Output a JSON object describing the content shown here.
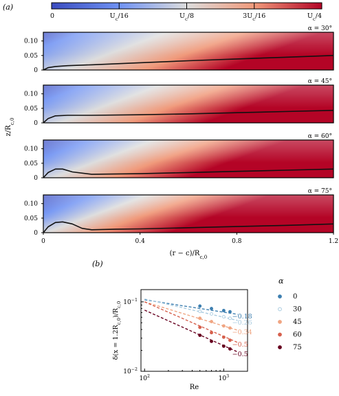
{
  "panel_labels": {
    "a": "(a)",
    "b": "(b)"
  },
  "colorbar": {
    "ticks": [
      "0",
      "U_c/16",
      "U_c/8",
      "3U_c/16",
      "U_c/4"
    ],
    "colors": [
      "#3b4cc0",
      "#6f92f3",
      "#dddddd",
      "#f09a7b",
      "#b40426"
    ]
  },
  "chart_data": [
    {
      "type": "heatmap",
      "title": "",
      "xlabel": "(r − c)/R_c,0",
      "ylabel": "z/R_c,0",
      "xlim": [
        0,
        1.2
      ],
      "ylim": [
        0,
        0.13
      ],
      "xticks": [
        "0",
        "0.4",
        "0.8",
        "1.2"
      ],
      "yticks": [
        "0",
        "0.05",
        "0.10"
      ],
      "colorscale": {
        "min": 0,
        "max": "U_c/4"
      },
      "panels": [
        {
          "label": "α = 30°",
          "alpha": 30,
          "boundary_layer": {
            "x": [
              0,
              0.02,
              0.05,
              0.1,
              0.2,
              0.4,
              0.6,
              0.8,
              1.0,
              1.2
            ],
            "y": [
              0,
              0.008,
              0.012,
              0.015,
              0.018,
              0.025,
              0.032,
              0.038,
              0.044,
              0.05
            ]
          }
        },
        {
          "label": "α = 45°",
          "alpha": 45,
          "boundary_layer": {
            "x": [
              0,
              0.02,
              0.05,
              0.1,
              0.2,
              0.4,
              0.6,
              0.8,
              1.0,
              1.2
            ],
            "y": [
              0,
              0.015,
              0.024,
              0.026,
              0.026,
              0.028,
              0.031,
              0.035,
              0.039,
              0.043
            ]
          }
        },
        {
          "label": "α = 60°",
          "alpha": 60,
          "boundary_layer": {
            "x": [
              0,
              0.02,
              0.05,
              0.08,
              0.12,
              0.2,
              0.4,
              0.6,
              0.8,
              1.0,
              1.2
            ],
            "y": [
              0,
              0.018,
              0.03,
              0.03,
              0.02,
              0.012,
              0.014,
              0.018,
              0.022,
              0.026,
              0.03
            ]
          }
        },
        {
          "label": "α = 75°",
          "alpha": 75,
          "boundary_layer": {
            "x": [
              0,
              0.02,
              0.05,
              0.08,
              0.12,
              0.16,
              0.2,
              0.3,
              0.4,
              0.6,
              0.8,
              1.0,
              1.2
            ],
            "y": [
              0,
              0.02,
              0.035,
              0.037,
              0.03,
              0.015,
              0.01,
              0.012,
              0.013,
              0.017,
              0.021,
              0.025,
              0.03
            ]
          }
        }
      ]
    },
    {
      "type": "scatter",
      "title": "",
      "xlabel": "Re",
      "ylabel": "δ(x = 1.2R_c,0)/R_c,0",
      "xscale": "log",
      "yscale": "log",
      "xlim": [
        90,
        2000
      ],
      "ylim": [
        0.01,
        0.15
      ],
      "xticks": [
        {
          "value": 100,
          "base": "10",
          "exp": "2"
        },
        {
          "value": 1000,
          "base": "10",
          "exp": "3"
        }
      ],
      "yticks": [
        {
          "value": 0.1,
          "base": "10",
          "exp": "−1"
        },
        {
          "value": 0.01,
          "base": "10",
          "exp": "−2"
        }
      ],
      "legend": {
        "title": "α",
        "position": "right-outside"
      },
      "series": [
        {
          "name": "0",
          "color": "#3d7fb0",
          "fill": "#3d7fb0",
          "slope_label": "−0.18",
          "x": [
            500,
            700,
            1000,
            1200
          ],
          "y": [
            0.087,
            0.08,
            0.075,
            0.072
          ],
          "fit": {
            "x": [
              100,
              1500
            ],
            "y": [
              0.107,
              0.066
            ]
          }
        },
        {
          "name": "30",
          "color": "#a9cbe0",
          "fill": "#ffffff",
          "slope_label": "−0.26",
          "x": [
            500,
            700,
            1000,
            1200
          ],
          "y": [
            0.073,
            0.067,
            0.061,
            0.058
          ],
          "fit": {
            "x": [
              100,
              1500
            ],
            "y": [
              0.11,
              0.054
            ]
          }
        },
        {
          "name": "45",
          "color": "#f0a582",
          "fill": "#f0a582",
          "slope_label": "−0.34",
          "x": [
            500,
            700,
            1000,
            1200
          ],
          "y": [
            0.058,
            0.052,
            0.045,
            0.042
          ],
          "fit": {
            "x": [
              100,
              1500
            ],
            "y": [
              0.1,
              0.039
            ]
          }
        },
        {
          "name": "60",
          "color": "#d6604d",
          "fill": "#d6604d",
          "slope_label": "−0.5",
          "x": [
            500,
            700,
            1000,
            1200
          ],
          "y": [
            0.043,
            0.036,
            0.031,
            0.028
          ],
          "fit": {
            "x": [
              100,
              1500
            ],
            "y": [
              0.1,
              0.026
            ]
          }
        },
        {
          "name": "75",
          "color": "#67001f",
          "fill": "#67001f",
          "slope_label": "−0.5",
          "x": [
            500,
            700,
            1000,
            1200
          ],
          "y": [
            0.033,
            0.027,
            0.023,
            0.021
          ],
          "fit": {
            "x": [
              100,
              1500
            ],
            "y": [
              0.076,
              0.019
            ]
          }
        }
      ]
    }
  ]
}
